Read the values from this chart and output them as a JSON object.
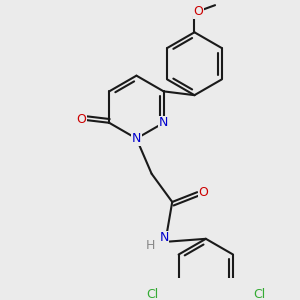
{
  "background_color": "#ebebeb",
  "bond_color": "#1a1a1a",
  "bond_width": 1.5,
  "atom_colors": {
    "N": "#0000cc",
    "O": "#cc0000",
    "Cl": "#33aa33",
    "H": "#888888",
    "C": "#1a1a1a"
  },
  "font_size": 9.0,
  "figsize": [
    3.0,
    3.0
  ],
  "dpi": 100,
  "xlim": [
    -0.3,
    3.5
  ],
  "ylim": [
    -0.3,
    4.8
  ]
}
